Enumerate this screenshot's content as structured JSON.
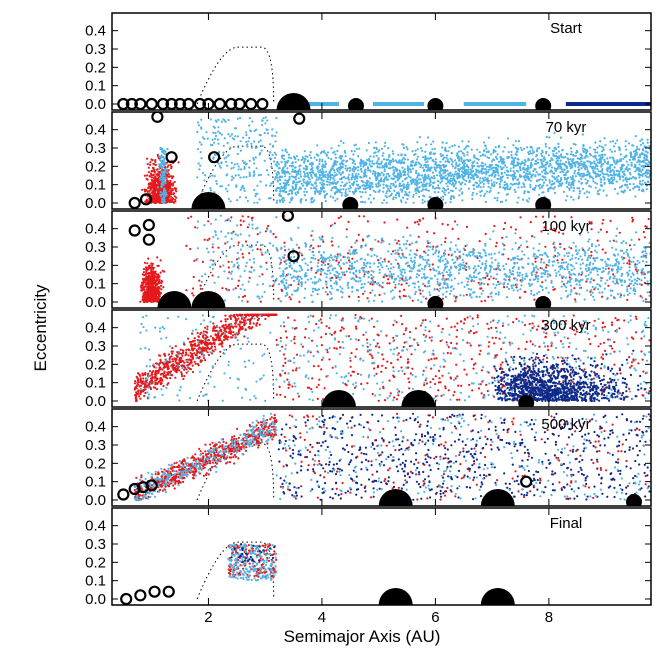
{
  "figure": {
    "ylabel": "Eccentricity",
    "xlabel": "Semimajor Axis (AU)",
    "x_ticks": [
      "2",
      "4",
      "6",
      "8"
    ],
    "y_ticks": [
      "0.0",
      "0.1",
      "0.2",
      "0.3",
      "0.4"
    ],
    "colors": {
      "inner_embryo_red": "#e41a1c",
      "light_blue_planetesimal": "#4fb3e6",
      "dark_blue_planetesimal": "#0d2a8a",
      "giant_planet": "#000000"
    }
  },
  "chart_data": {
    "type": "scatter",
    "xlim": [
      0.3,
      9.8
    ],
    "ylim": [
      0.0,
      0.48
    ],
    "panels": [
      {
        "label": "Start",
        "giants": [
          {
            "x": 3.5,
            "e": 0.0,
            "size": "large"
          },
          {
            "x": 4.6,
            "e": 0.0,
            "size": "small"
          },
          {
            "x": 6.0,
            "e": 0.0,
            "size": "small"
          },
          {
            "x": 7.9,
            "e": 0.0,
            "size": "small"
          }
        ],
        "embryos": [
          {
            "x": 0.5,
            "e": 0.0
          },
          {
            "x": 0.65,
            "e": 0.0
          },
          {
            "x": 0.8,
            "e": 0.0
          },
          {
            "x": 1.0,
            "e": 0.0
          },
          {
            "x": 1.2,
            "e": 0.0
          },
          {
            "x": 1.35,
            "e": 0.0
          },
          {
            "x": 1.5,
            "e": 0.0
          },
          {
            "x": 1.65,
            "e": 0.0
          },
          {
            "x": 1.85,
            "e": 0.0
          },
          {
            "x": 2.0,
            "e": 0.0
          },
          {
            "x": 2.2,
            "e": 0.0
          },
          {
            "x": 2.4,
            "e": 0.0
          },
          {
            "x": 2.55,
            "e": 0.0
          },
          {
            "x": 2.75,
            "e": 0.0
          },
          {
            "x": 2.95,
            "e": 0.0
          }
        ]
      },
      {
        "label": "70 kyr",
        "giants": [
          {
            "x": 2.0,
            "e": 0.0,
            "size": "large"
          },
          {
            "x": 4.5,
            "e": 0.0,
            "size": "small"
          },
          {
            "x": 6.0,
            "e": 0.0,
            "size": "small"
          },
          {
            "x": 7.9,
            "e": 0.0,
            "size": "small"
          }
        ],
        "embryos": [
          {
            "x": 0.7,
            "e": 0.0
          },
          {
            "x": 0.9,
            "e": 0.02
          },
          {
            "x": 1.1,
            "e": 0.47
          },
          {
            "x": 1.35,
            "e": 0.25
          },
          {
            "x": 2.1,
            "e": 0.25
          },
          {
            "x": 3.6,
            "e": 0.46
          },
          {
            "x": 4.5,
            "e": 0.0
          },
          {
            "x": 6.0,
            "e": 0.0
          }
        ]
      },
      {
        "label": "100 kyr",
        "giants": [
          {
            "x": 1.4,
            "e": 0.0,
            "size": "large"
          },
          {
            "x": 2.0,
            "e": 0.0,
            "size": "large"
          },
          {
            "x": 6.0,
            "e": 0.0,
            "size": "small"
          },
          {
            "x": 7.9,
            "e": 0.0,
            "size": "small"
          }
        ],
        "embryos": [
          {
            "x": 0.7,
            "e": 0.39
          },
          {
            "x": 0.95,
            "e": 0.42
          },
          {
            "x": 0.95,
            "e": 0.34
          },
          {
            "x": 3.4,
            "e": 0.47
          },
          {
            "x": 3.5,
            "e": 0.25
          },
          {
            "x": 6.0,
            "e": 0.0
          }
        ]
      },
      {
        "label": "300 kyr",
        "giants": [
          {
            "x": 4.3,
            "e": 0.0,
            "size": "large"
          },
          {
            "x": 5.7,
            "e": 0.0,
            "size": "large"
          },
          {
            "x": 7.6,
            "e": 0.0,
            "size": "small"
          }
        ],
        "embryos": []
      },
      {
        "label": "500 kyr",
        "giants": [
          {
            "x": 5.3,
            "e": 0.0,
            "size": "large"
          },
          {
            "x": 7.1,
            "e": 0.0,
            "size": "large"
          },
          {
            "x": 9.5,
            "e": 0.0,
            "size": "small"
          }
        ],
        "embryos": [
          {
            "x": 0.5,
            "e": 0.03
          },
          {
            "x": 0.7,
            "e": 0.06
          },
          {
            "x": 0.85,
            "e": 0.07
          },
          {
            "x": 1.0,
            "e": 0.08
          },
          {
            "x": 7.6,
            "e": 0.1
          }
        ]
      },
      {
        "label": "Final",
        "giants": [
          {
            "x": 5.3,
            "e": 0.0,
            "size": "large"
          },
          {
            "x": 7.1,
            "e": 0.0,
            "size": "large"
          }
        ],
        "embryos": [
          {
            "x": 0.55,
            "e": 0.0
          },
          {
            "x": 0.8,
            "e": 0.02
          },
          {
            "x": 1.05,
            "e": 0.04
          },
          {
            "x": 1.3,
            "e": 0.04
          }
        ]
      }
    ]
  }
}
